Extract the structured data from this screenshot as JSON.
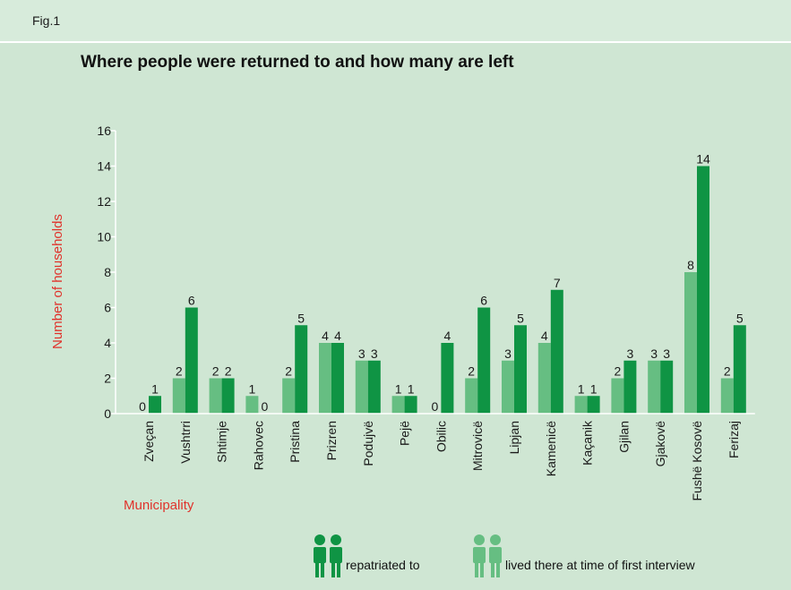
{
  "fig_label": "Fig.1",
  "title": "Where people were returned to and how many are left",
  "colors": {
    "background": "#cfe6d3",
    "repatriated": "#0f9444",
    "lived_there": "#66be82",
    "axis_title": "#e0322b"
  },
  "legend": {
    "repatriated_label": "repatriated to",
    "repatriated_icon": "two-people-icon",
    "lived_label": "lived there at time of first interview",
    "lived_icon": "two-people-icon"
  },
  "chart_data": {
    "type": "bar",
    "title": "Where people were returned to and how many are left",
    "xlabel": "Municipality",
    "ylabel": "Number of households",
    "ylim": [
      0,
      16
    ],
    "yticks": [
      0,
      2,
      4,
      6,
      8,
      10,
      12,
      14,
      16
    ],
    "grid": false,
    "legend_position": "bottom",
    "categories": [
      "Zveçan",
      "Vushtrri",
      "Shtimje",
      "Rahovec",
      "Pristina",
      "Prizren",
      "Podujvë",
      "Pejë",
      "Obilic",
      "Mitrovicë",
      "Lipjan",
      "Kamenicë",
      "Kaçanik",
      "Gjilan",
      "Gjakovë",
      "Fushë Kosovë",
      "Ferizaj"
    ],
    "series": [
      {
        "name": "lived there at time of first interview",
        "color": "#66be82",
        "values": [
          0,
          2,
          2,
          1,
          2,
          4,
          3,
          1,
          0,
          2,
          3,
          4,
          1,
          2,
          3,
          8,
          2
        ]
      },
      {
        "name": "repatriated to",
        "color": "#0f9444",
        "values": [
          1,
          6,
          2,
          0,
          5,
          4,
          3,
          1,
          4,
          6,
          5,
          7,
          1,
          3,
          3,
          14,
          5
        ]
      }
    ]
  }
}
